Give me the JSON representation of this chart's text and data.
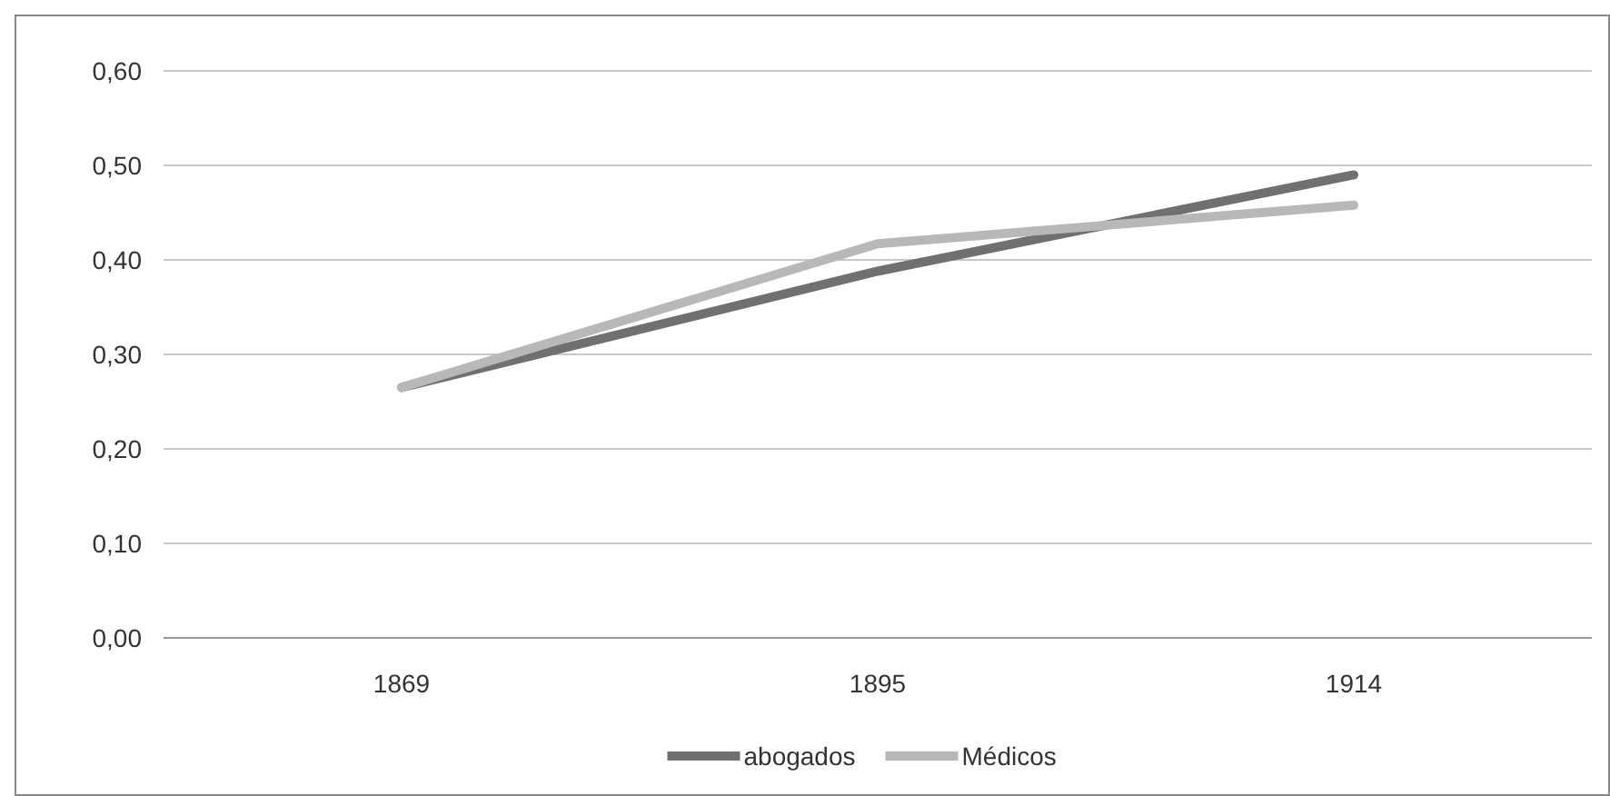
{
  "chart_data": {
    "type": "line",
    "categories": [
      "1869",
      "1895",
      "1914"
    ],
    "series": [
      {
        "name": "abogados",
        "color": "#707070",
        "values": [
          0.265,
          0.388,
          0.49
        ]
      },
      {
        "name": "Médicos",
        "color": "#b8b8b8",
        "values": [
          0.265,
          0.417,
          0.458
        ]
      }
    ],
    "ylim": [
      0,
      0.6
    ],
    "yticks": [
      {
        "value": 0,
        "label": "0,00"
      },
      {
        "value": 0.1,
        "label": "0,10"
      },
      {
        "value": 0.2,
        "label": "0,20"
      },
      {
        "value": 0.3,
        "label": "0,30"
      },
      {
        "value": 0.4,
        "label": "0,40"
      },
      {
        "value": 0.5,
        "label": "0,50"
      },
      {
        "value": 0.6,
        "label": "0,60"
      }
    ],
    "grid": "y",
    "legend": "bottom",
    "marker": "none",
    "line_style": "solid"
  }
}
